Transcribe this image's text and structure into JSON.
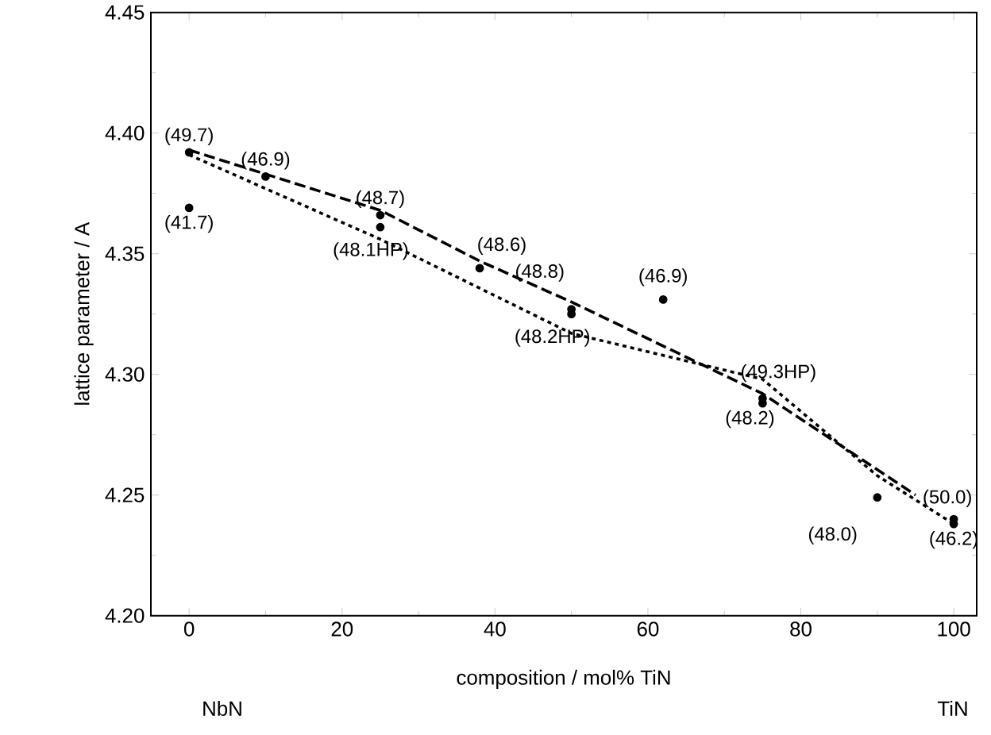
{
  "chart_data": {
    "type": "scatter",
    "xlabel": "composition / mol% TiN",
    "ylabel": "lattice parameter / A",
    "xlim": [
      -5,
      103
    ],
    "ylim": [
      4.2,
      4.45
    ],
    "xticks": [
      0,
      20,
      40,
      60,
      80,
      100
    ],
    "yticks": [
      {
        "value": 4.2,
        "label": "4.20"
      },
      4.25,
      {
        "value": 4.3,
        "label": "4.30"
      },
      4.35,
      {
        "value": 4.4,
        "label": "4.40"
      },
      4.45
    ],
    "grid": false,
    "marker": "circle",
    "series": [
      {
        "color": "#000000",
        "x": [
          0,
          0,
          10,
          25,
          25,
          38,
          50,
          50,
          62,
          75,
          75,
          90,
          100,
          100
        ],
        "values": [
          4.392,
          4.369,
          4.382,
          4.366,
          4.361,
          4.344,
          4.327,
          4.325,
          4.331,
          4.29,
          4.288,
          4.249,
          4.24,
          4.238
        ]
      },
      {
        "type": "line",
        "marker": "none",
        "color": "#000000",
        "line_style": "dashed",
        "x": [
          0,
          10,
          25,
          38,
          50,
          75,
          95
        ],
        "values": [
          4.393,
          4.383,
          4.368,
          4.347,
          4.33,
          4.292,
          4.25
        ]
      },
      {
        "type": "line",
        "marker": "none",
        "color": "#000000",
        "line_style": "dotted",
        "x": [
          0,
          25,
          50,
          75,
          90,
          100
        ],
        "values": [
          4.391,
          4.356,
          4.317,
          4.298,
          4.258,
          4.238
        ]
      }
    ],
    "annotations": [
      {
        "text": "(49.7)",
        "x": 0,
        "y": 4.392
      },
      {
        "text": "(41.7)",
        "x": 0,
        "y": 4.369
      },
      {
        "text": "(46.9)",
        "x": 10,
        "y": 4.382
      },
      {
        "text": "(48.7)",
        "x": 25,
        "y": 4.366
      },
      {
        "text": "(48.1HP)",
        "x": 25,
        "y": 4.361
      },
      {
        "text": "(48.6)",
        "x": 38,
        "y": 4.344
      },
      {
        "text": "(48.8)",
        "x": 50,
        "y": 4.327
      },
      {
        "text": "(48.2HP)",
        "x": 50,
        "y": 4.325
      },
      {
        "text": "(46.9)",
        "x": 62,
        "y": 4.331
      },
      {
        "text": "(49.3HP)",
        "x": 75,
        "y": 4.29
      },
      {
        "text": "(48.2)",
        "x": 75,
        "y": 4.288
      },
      {
        "text": "(48.0)",
        "x": 90,
        "y": 4.249
      },
      {
        "text": "(50.0)",
        "x": 100,
        "y": 4.24
      },
      {
        "text": "(46.2)",
        "x": 100,
        "y": 4.238
      },
      "NbN",
      "TiN"
    ]
  }
}
